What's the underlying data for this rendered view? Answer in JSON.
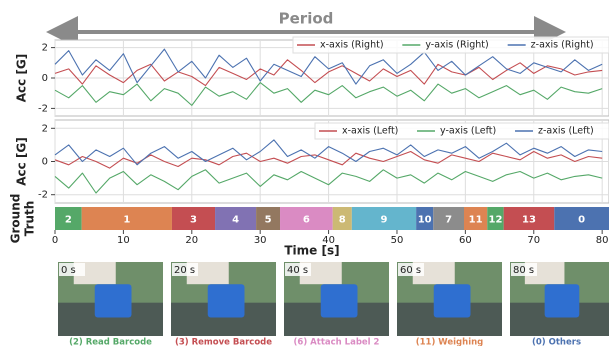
{
  "chart_data": [
    {
      "type": "line",
      "annotation": "Period",
      "ylabel": "Acc [G]",
      "xlim": [
        0,
        81
      ],
      "ylim": [
        -2.5,
        2.5
      ],
      "yticks": [
        -2,
        0,
        2
      ],
      "xticks": [
        0,
        10,
        20,
        30,
        40,
        50,
        60,
        70,
        80
      ],
      "grid": true,
      "legend": "upper right",
      "x": [
        0,
        2,
        4,
        6,
        8,
        10,
        12,
        14,
        16,
        18,
        20,
        22,
        24,
        26,
        28,
        30,
        32,
        34,
        36,
        38,
        40,
        42,
        44,
        46,
        48,
        50,
        52,
        54,
        56,
        58,
        60,
        62,
        64,
        66,
        68,
        70,
        72,
        74,
        76,
        78,
        80
      ],
      "series": [
        {
          "name": "x-axis (Right)",
          "color": "#c44e52",
          "values": [
            0.3,
            0.6,
            -0.4,
            0.8,
            0.2,
            -0.3,
            0.5,
            0.9,
            -0.2,
            0.4,
            0.1,
            -0.5,
            0.7,
            0.3,
            -0.1,
            0.6,
            0.2,
            1.2,
            0.5,
            -0.3,
            0.4,
            0.8,
            0.3,
            -0.2,
            0.6,
            0.1,
            0.5,
            -0.4,
            0.9,
            0.4,
            0.2,
            0.7,
            -0.1,
            0.5,
            1.0,
            0.3,
            0.8,
            0.6,
            0.2,
            0.4,
            0.5
          ]
        },
        {
          "name": "y-axis (Right)",
          "color": "#55a868",
          "values": [
            -0.8,
            -1.3,
            -0.5,
            -1.6,
            -0.9,
            -1.1,
            -0.4,
            -1.5,
            -0.7,
            -1.0,
            -1.8,
            -0.6,
            -1.2,
            -0.9,
            -1.4,
            -0.3,
            -1.0,
            -0.7,
            -1.6,
            -0.8,
            -1.1,
            -0.5,
            -1.3,
            -0.9,
            -0.6,
            -1.2,
            -0.8,
            -1.5,
            -0.4,
            -1.0,
            -0.7,
            -1.3,
            -0.9,
            -0.5,
            -1.1,
            -0.8,
            -1.4,
            -0.6,
            -0.9,
            -1.0,
            -0.7
          ]
        },
        {
          "name": "z-axis (Right)",
          "color": "#4c72b0",
          "values": [
            0.9,
            1.8,
            0.2,
            1.2,
            0.5,
            1.6,
            -0.3,
            0.8,
            1.9,
            0.4,
            1.1,
            0.0,
            1.5,
            0.7,
            1.3,
            -0.2,
            0.9,
            0.5,
            0.1,
            1.4,
            0.6,
            1.0,
            -0.4,
            0.8,
            1.2,
            0.3,
            0.9,
            1.7,
            0.5,
            1.1,
            0.2,
            0.8,
            1.4,
            0.6,
            0.3,
            1.0,
            0.7,
            0.4,
            1.2,
            0.5,
            0.9
          ]
        }
      ]
    },
    {
      "type": "line",
      "ylabel": "Acc [G]",
      "xlim": [
        0,
        81
      ],
      "ylim": [
        -2.5,
        2.5
      ],
      "yticks": [
        -2,
        0,
        2
      ],
      "xticks": [
        0,
        10,
        20,
        30,
        40,
        50,
        60,
        70,
        80
      ],
      "grid": true,
      "legend": "upper right",
      "x": [
        0,
        2,
        4,
        6,
        8,
        10,
        12,
        14,
        16,
        18,
        20,
        22,
        24,
        26,
        28,
        30,
        32,
        34,
        36,
        38,
        40,
        42,
        44,
        46,
        48,
        50,
        52,
        54,
        56,
        58,
        60,
        62,
        64,
        66,
        68,
        70,
        72,
        74,
        76,
        78,
        80
      ],
      "series": [
        {
          "name": "x-axis (Left)",
          "color": "#c44e52",
          "values": [
            0.1,
            -0.2,
            0.3,
            0.0,
            -0.4,
            0.2,
            -0.1,
            0.4,
            0.0,
            -0.3,
            0.2,
            0.1,
            -0.2,
            0.3,
            0.5,
            0.0,
            0.2,
            -0.1,
            0.3,
            0.4,
            0.1,
            -0.2,
            0.5,
            0.2,
            0.0,
            0.3,
            0.6,
            0.1,
            -0.1,
            0.4,
            0.2,
            0.0,
            0.5,
            0.3,
            0.1,
            0.6,
            0.2,
            0.4,
            0.0,
            0.3,
            0.2
          ]
        },
        {
          "name": "y-axis (Left)",
          "color": "#55a868",
          "values": [
            -0.9,
            -1.6,
            -0.7,
            -1.9,
            -1.0,
            -0.6,
            -1.4,
            -0.8,
            -1.2,
            -1.7,
            -0.9,
            -0.5,
            -1.3,
            -1.0,
            -0.7,
            -1.5,
            -0.8,
            -1.1,
            -0.6,
            -1.0,
            -1.4,
            -0.7,
            -0.9,
            -1.2,
            -0.5,
            -1.0,
            -0.8,
            -1.3,
            -0.7,
            -1.1,
            -0.6,
            -0.9,
            -1.2,
            -0.8,
            -0.6,
            -1.0,
            -0.7,
            -1.1,
            -0.9,
            -0.8,
            -1.0
          ]
        },
        {
          "name": "z-axis (Left)",
          "color": "#4c72b0",
          "values": [
            0.4,
            1.0,
            0.0,
            0.7,
            0.3,
            0.8,
            -0.2,
            0.5,
            0.9,
            0.2,
            0.6,
            0.0,
            0.4,
            0.8,
            0.1,
            0.6,
            1.3,
            0.3,
            0.7,
            0.2,
            0.9,
            0.5,
            0.0,
            0.6,
            0.8,
            0.4,
            1.0,
            0.3,
            0.7,
            0.5,
            0.9,
            0.2,
            0.6,
            1.1,
            0.4,
            0.8,
            0.5,
            0.9,
            0.3,
            0.7,
            0.6
          ]
        }
      ]
    },
    {
      "type": "timeline",
      "ylabel": [
        "Ground",
        "Truth"
      ],
      "xlabel": "Time [s]",
      "xlim": [
        0,
        81
      ],
      "xticks": [
        0,
        10,
        20,
        30,
        40,
        50,
        60,
        70,
        80
      ],
      "segments": [
        {
          "label": "2",
          "start": 0,
          "end": 3.9,
          "color": "#55a868"
        },
        {
          "label": "1",
          "start": 3.9,
          "end": 17.1,
          "color": "#dd8452"
        },
        {
          "label": "3",
          "start": 17.1,
          "end": 23.4,
          "color": "#c44e52"
        },
        {
          "label": "4",
          "start": 23.4,
          "end": 29.4,
          "color": "#8172b3"
        },
        {
          "label": "5",
          "start": 29.4,
          "end": 32.9,
          "color": "#937860"
        },
        {
          "label": "6",
          "start": 32.9,
          "end": 40.6,
          "color": "#da8bc3"
        },
        {
          "label": "8",
          "start": 40.6,
          "end": 43.4,
          "color": "#ccb974"
        },
        {
          "label": "9",
          "start": 43.4,
          "end": 52.8,
          "color": "#64b5cd"
        },
        {
          "label": "10",
          "start": 52.8,
          "end": 55.3,
          "color": "#4c72b0"
        },
        {
          "label": "7",
          "start": 55.3,
          "end": 59.8,
          "color": "#8c8c8c"
        },
        {
          "label": "11",
          "start": 59.8,
          "end": 63.2,
          "color": "#dd8452"
        },
        {
          "label": "12",
          "start": 63.2,
          "end": 65.6,
          "color": "#55a868"
        },
        {
          "label": "13",
          "start": 65.6,
          "end": 73,
          "color": "#c44e52"
        },
        {
          "label": "0",
          "start": 73,
          "end": 81,
          "color": "#4c72b0"
        }
      ]
    }
  ],
  "photos": [
    {
      "time_label": "0 s",
      "caption": "(2) Read Barcode",
      "color": "#55a868"
    },
    {
      "time_label": "20 s",
      "caption": "(3) Remove Barcode",
      "color": "#c44e52"
    },
    {
      "time_label": "40 s",
      "caption": "(6) Attach Label 2",
      "color": "#da8bc3"
    },
    {
      "time_label": "60 s",
      "caption": "(11) Weighing",
      "color": "#dd8452"
    },
    {
      "time_label": "80 s",
      "caption": "(0) Others",
      "color": "#4c72b0"
    }
  ]
}
